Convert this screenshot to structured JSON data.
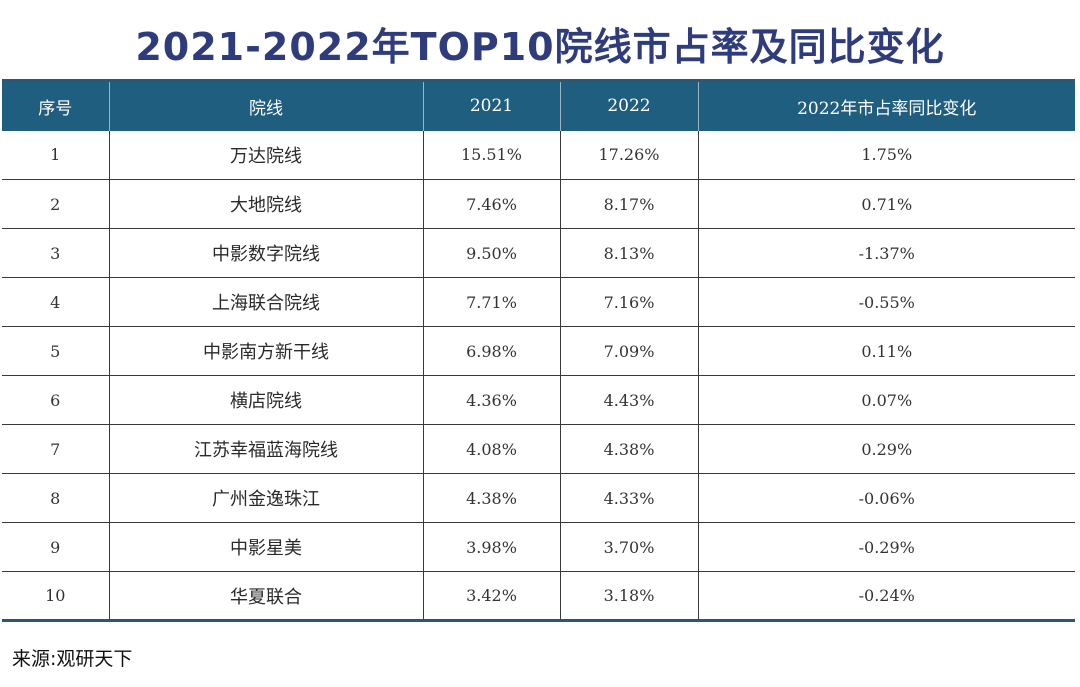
{
  "title": "2021-2022年TOP10院线市占率及同比变化",
  "table": {
    "headers": [
      "序号",
      "院线",
      "2021",
      "2022",
      "2022年市占率同比变化"
    ],
    "rows": [
      {
        "rank": "1",
        "name": "万达院线",
        "y2021": "15.51%",
        "y2022": "17.26%",
        "change": "1.75%"
      },
      {
        "rank": "2",
        "name": "大地院线",
        "y2021": "7.46%",
        "y2022": "8.17%",
        "change": "0.71%"
      },
      {
        "rank": "3",
        "name": "中影数字院线",
        "y2021": "9.50%",
        "y2022": "8.13%",
        "change": "-1.37%"
      },
      {
        "rank": "4",
        "name": "上海联合院线",
        "y2021": "7.71%",
        "y2022": "7.16%",
        "change": "-0.55%"
      },
      {
        "rank": "5",
        "name": "中影南方新干线",
        "y2021": "6.98%",
        "y2022": "7.09%",
        "change": "0.11%"
      },
      {
        "rank": "6",
        "name": "横店院线",
        "y2021": "4.36%",
        "y2022": "4.43%",
        "change": "0.07%"
      },
      {
        "rank": "7",
        "name": "江苏幸福蓝海院线",
        "y2021": "4.08%",
        "y2022": "4.38%",
        "change": "0.29%"
      },
      {
        "rank": "8",
        "name": "广州金逸珠江",
        "y2021": "4.38%",
        "y2022": "4.33%",
        "change": "-0.06%"
      },
      {
        "rank": "9",
        "name": "中影星美",
        "y2021": "3.98%",
        "y2022": "3.70%",
        "change": "-0.29%"
      },
      {
        "rank": "10",
        "name": "华夏联合",
        "y2021": "3.42%",
        "y2022": "3.18%",
        "change": "-0.24%"
      }
    ]
  },
  "source": "来源:观研天下",
  "colors": {
    "title": "#2e3c7e",
    "header_bg": "#205e80",
    "header_text": "#ffffff",
    "grid": "#3a3a3a"
  }
}
